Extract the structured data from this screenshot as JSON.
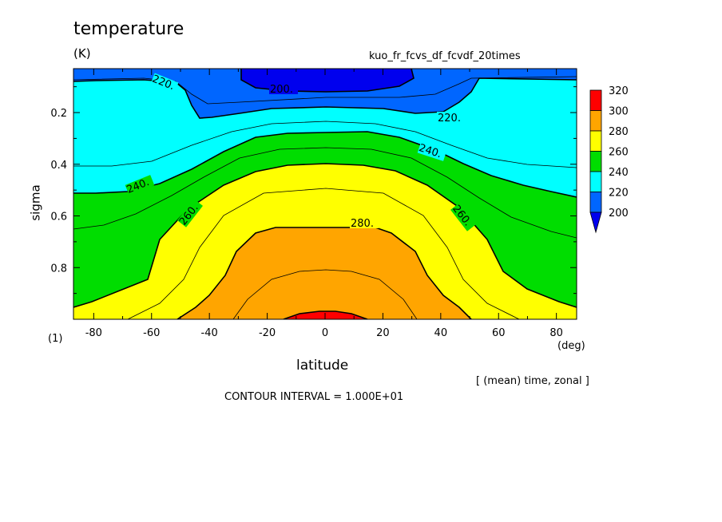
{
  "chart_data": {
    "type": "heatmap",
    "title": "temperature",
    "units": "(K)",
    "run_name": "kuo_fr_fcvs_df_fcvdf_20times",
    "xlabel": "latitude",
    "x_units": "(deg)",
    "ylabel": "sigma",
    "y_units": "(1)",
    "xlim": [
      -87,
      87
    ],
    "ylim": [
      1.0,
      0.03
    ],
    "x_ticks": [
      "-80",
      "-60",
      "-40",
      "-20",
      "0",
      "20",
      "40",
      "60",
      "80"
    ],
    "x_tick_values": [
      -80,
      -60,
      -40,
      -20,
      0,
      20,
      40,
      60,
      80
    ],
    "y_ticks": [
      "0.2",
      "0.4",
      "0.6",
      "0.8"
    ],
    "y_tick_values": [
      0.2,
      0.4,
      0.6,
      0.8
    ],
    "contour_levels": [
      200,
      210,
      220,
      230,
      240,
      250,
      260,
      270,
      280,
      290,
      300,
      310,
      320
    ],
    "contour_labels": [
      "200.",
      "220.",
      "220.",
      "240.",
      "240.",
      "260.",
      "260.",
      "280."
    ],
    "colorbar": {
      "labels": [
        "320",
        "300",
        "280",
        "260",
        "240",
        "220",
        "200"
      ],
      "colors": [
        "#ff0000",
        "#ffa500",
        "#ffff00",
        "#00dd00",
        "#00ffff",
        "#0066ff",
        "#0000ee"
      ]
    },
    "averaging_note": "[ (mean) time, zonal ]",
    "contour_interval": "CONTOUR INTERVAL = 1.000E+01"
  }
}
